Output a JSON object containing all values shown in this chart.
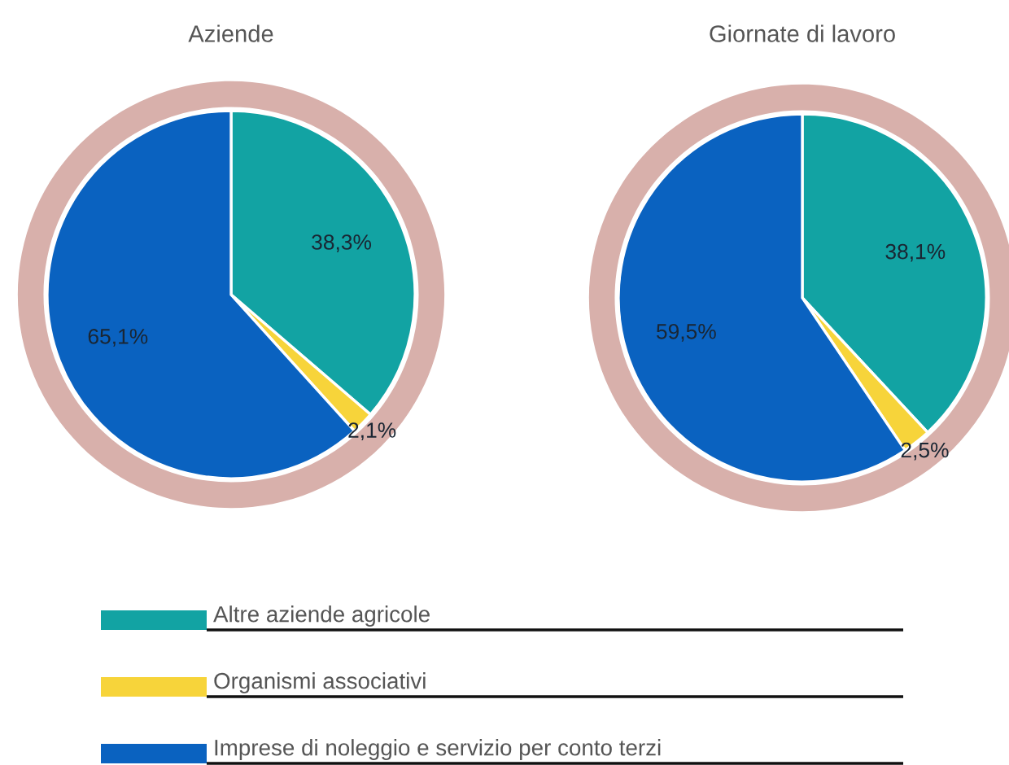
{
  "chart_data": [
    {
      "type": "pie",
      "title": "Aziende",
      "categories": [
        "Altre aziende agricole",
        "Organismi associativi",
        "Imprese di noleggio e servizio per conto terzi"
      ],
      "values": [
        38.3,
        2.1,
        65.1
      ],
      "colors": [
        "#12a3a3",
        "#f7d43a",
        "#0a62c0"
      ],
      "value_labels": [
        "38,3%",
        "2,1%",
        "65,1%"
      ],
      "legend": "bottom"
    },
    {
      "type": "pie",
      "title": "Giornate di lavoro",
      "categories": [
        null,
        null,
        null
      ],
      "values": [
        38.1,
        2.5,
        59.5
      ],
      "colors": [
        "#12a3a3",
        "#f7d43a",
        "#0a62c0"
      ],
      "value_labels": [
        "38,1%",
        "2,5%",
        "59,5%"
      ]
    }
  ]
}
